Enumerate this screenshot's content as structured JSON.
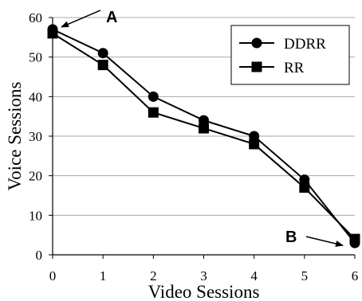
{
  "chart_data": {
    "type": "line",
    "title": "",
    "xlabel": "Video Sessions",
    "ylabel": "Voice Sessions",
    "x": [
      0,
      1,
      2,
      3,
      4,
      5,
      6
    ],
    "xlim": [
      0,
      6
    ],
    "ylim": [
      0,
      60
    ],
    "yticks": [
      0,
      10,
      20,
      30,
      40,
      50,
      60
    ],
    "grid": "horizontal",
    "legend_position": "top-right",
    "series": [
      {
        "name": "DDRR",
        "marker": "circle",
        "values": [
          57,
          51,
          40,
          34,
          30,
          19,
          3
        ]
      },
      {
        "name": "RR",
        "marker": "square",
        "values": [
          56,
          48,
          36,
          32,
          28,
          17,
          4
        ]
      }
    ],
    "annotations": [
      {
        "text": "A",
        "target_x": 0,
        "target_y": 57
      },
      {
        "text": "B",
        "target_x": 6,
        "target_y": 3
      }
    ]
  }
}
